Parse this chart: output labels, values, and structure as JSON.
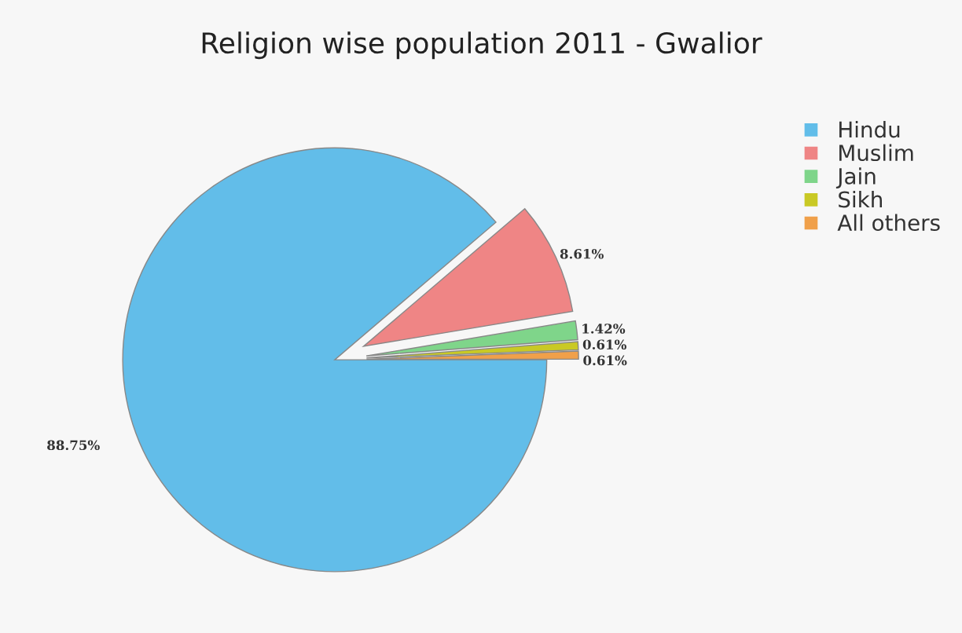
{
  "chart_data": {
    "type": "pie",
    "title": "Religion wise population 2011 - Gwalior",
    "categories": [
      "Hindu",
      "Muslim",
      "Jain",
      "Sikh",
      "All others"
    ],
    "values": [
      88.75,
      8.61,
      1.42,
      0.61,
      0.61
    ],
    "value_labels": [
      "88.75%",
      "8.61%",
      "1.42%",
      "0.61%",
      "0.61%"
    ],
    "colors": [
      "#62bde9",
      "#ef8585",
      "#7fd58a",
      "#c9c925",
      "#f0a04a"
    ],
    "legend": "right"
  }
}
